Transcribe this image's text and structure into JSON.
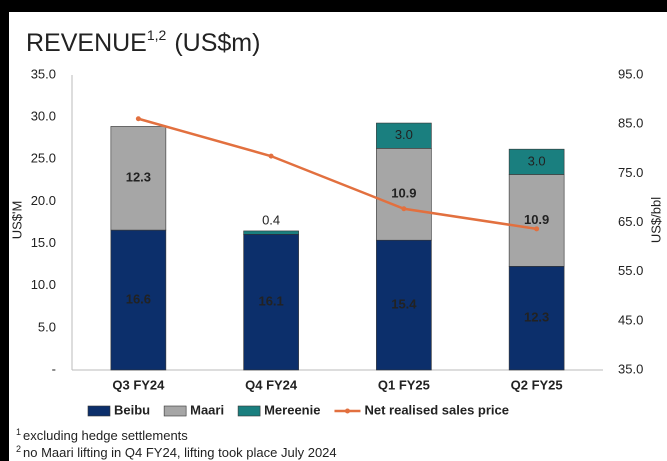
{
  "chart_data": {
    "type": "bar",
    "title": "REVENUE",
    "title_superscript": "1,2",
    "title_suffix": "(US$m)",
    "categories": [
      "Q3 FY24",
      "Q4 FY24",
      "Q1 FY25",
      "Q2 FY25"
    ],
    "stacked": true,
    "series": [
      {
        "name": "Beibu",
        "color": "#0c2f6b",
        "values": [
          16.6,
          16.1,
          15.4,
          12.3
        ]
      },
      {
        "name": "Maari",
        "color": "#a6a6a6",
        "values": [
          12.3,
          null,
          10.9,
          10.9
        ]
      },
      {
        "name": "Mereenie",
        "color": "#1a7f7f",
        "values": [
          null,
          0.4,
          3.0,
          3.0
        ],
        "value_labels": [
          null,
          "0.4",
          "3.0",
          "3.0"
        ]
      },
      {
        "name": "Net realised sales price",
        "type": "line",
        "axis": "y2",
        "color": "#e2703f",
        "values": [
          86.1,
          78.5,
          67.8,
          63.7
        ]
      }
    ],
    "ylabel": "US$'M",
    "y2label": "US$/bbl",
    "ylim": [
      0,
      35
    ],
    "yticks": [
      {
        "value": 0,
        "label": "-"
      },
      {
        "value": 5,
        "label": "5.0"
      },
      {
        "value": 10,
        "label": "10.0"
      },
      {
        "value": 15,
        "label": "15.0"
      },
      {
        "value": 20,
        "label": "20.0"
      },
      {
        "value": 25,
        "label": "25.0"
      },
      {
        "value": 30,
        "label": "30.0"
      },
      {
        "value": 35,
        "label": "35.0"
      }
    ],
    "y2lim": [
      35,
      95
    ],
    "y2ticks": [
      {
        "value": 35,
        "label": "35.0"
      },
      {
        "value": 45,
        "label": "45.0"
      },
      {
        "value": 55,
        "label": "55.0"
      },
      {
        "value": 65,
        "label": "65.0"
      },
      {
        "value": 75,
        "label": "75.0"
      },
      {
        "value": 85,
        "label": "85.0"
      },
      {
        "value": 95,
        "label": "95.0"
      }
    ],
    "legend": "bottom",
    "footnotes": [
      {
        "marker": "1",
        "text": "excluding hedge settlements"
      },
      {
        "marker": "2",
        "text": "no Maari lifting in Q4 FY24, lifting took place July 2024"
      }
    ]
  }
}
